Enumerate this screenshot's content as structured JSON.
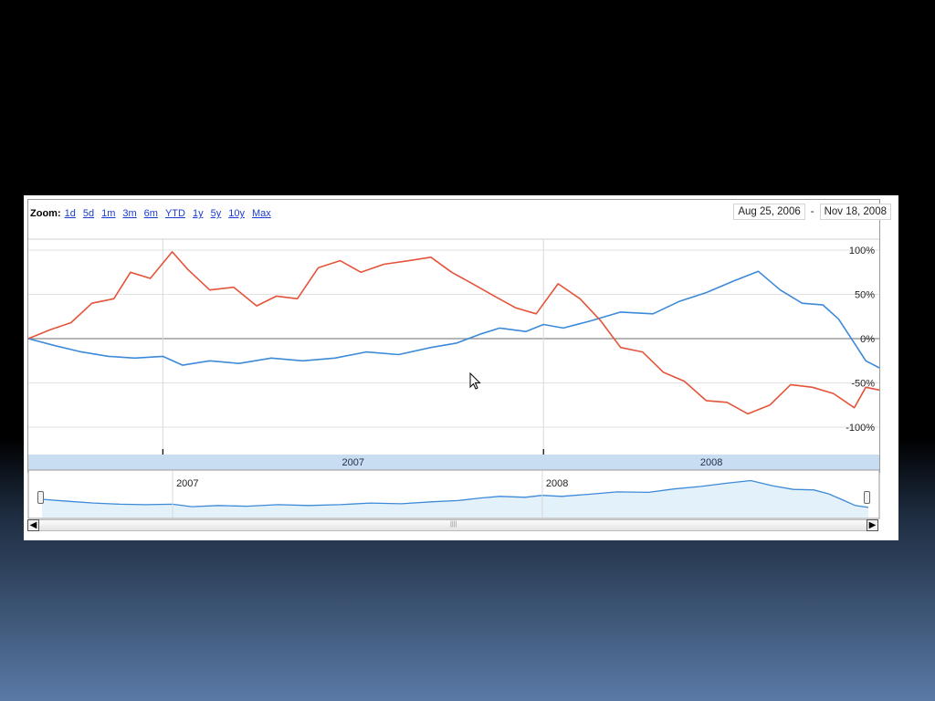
{
  "zoom": {
    "label": "Zoom:",
    "options": [
      "1d",
      "5d",
      "1m",
      "3m",
      "6m",
      "YTD",
      "1y",
      "5y",
      "10y",
      "Max"
    ]
  },
  "date_range": {
    "start": "Aug 25, 2006",
    "separator": "-",
    "end": "Nov 18, 2008"
  },
  "navigator": {
    "labels": [
      "2007",
      "2008"
    ]
  },
  "colors": {
    "series_blue": "#3d8ad8",
    "series_red": "#e4543a",
    "band": "#c8dcf2",
    "mini_fill": "#e3f1fb"
  },
  "icons": {
    "scroll_left": "chevron-left-icon",
    "scroll_right": "chevron-right-icon",
    "cursor": "mouse-pointer-icon"
  },
  "chart_data": {
    "type": "line",
    "title": "",
    "x_range": [
      "2006-08-25",
      "2008-11-18"
    ],
    "ylim": [
      -100,
      100
    ],
    "y_ticks": [
      100,
      50,
      0,
      -50,
      -100
    ],
    "y_tick_labels": [
      "100%",
      "50%",
      "0%",
      "-50%",
      "-100%"
    ],
    "x_tick_labels": [
      "2007",
      "2008"
    ],
    "grid": true,
    "series": [
      {
        "color": "#3d8ad8",
        "x": [
          "2006-08-25",
          "2006-09-20",
          "2006-10-15",
          "2006-11-10",
          "2006-12-05",
          "2007-01-01",
          "2007-01-20",
          "2007-02-15",
          "2007-03-15",
          "2007-04-15",
          "2007-05-15",
          "2007-06-15",
          "2007-07-15",
          "2007-08-15",
          "2007-09-15",
          "2007-10-10",
          "2007-11-01",
          "2007-11-20",
          "2007-12-15",
          "2008-01-01",
          "2008-01-20",
          "2008-02-15",
          "2008-03-15",
          "2008-04-15",
          "2008-05-10",
          "2008-06-05",
          "2008-07-01",
          "2008-07-25",
          "2008-08-15",
          "2008-09-05",
          "2008-09-25",
          "2008-10-10",
          "2008-10-25",
          "2008-11-05",
          "2008-11-18"
        ],
        "values": [
          0,
          -8,
          -15,
          -20,
          -22,
          -20,
          -30,
          -25,
          -28,
          -22,
          -25,
          -22,
          -15,
          -18,
          -10,
          -5,
          5,
          12,
          8,
          16,
          12,
          20,
          30,
          28,
          42,
          52,
          65,
          76,
          55,
          40,
          38,
          22,
          -5,
          -25,
          -33
        ]
      },
      {
        "color": "#e4543a",
        "x": [
          "2006-08-25",
          "2006-09-15",
          "2006-10-05",
          "2006-10-25",
          "2006-11-15",
          "2006-12-01",
          "2006-12-20",
          "2007-01-10",
          "2007-01-25",
          "2007-02-15",
          "2007-03-10",
          "2007-04-01",
          "2007-04-20",
          "2007-05-10",
          "2007-05-30",
          "2007-06-20",
          "2007-07-10",
          "2007-08-01",
          "2007-08-25",
          "2007-09-15",
          "2007-10-05",
          "2007-10-25",
          "2007-11-15",
          "2007-12-05",
          "2007-12-25",
          "2008-01-15",
          "2008-02-05",
          "2008-02-25",
          "2008-03-15",
          "2008-04-05",
          "2008-04-25",
          "2008-05-15",
          "2008-06-05",
          "2008-06-25",
          "2008-07-15",
          "2008-08-05",
          "2008-08-25",
          "2008-09-15",
          "2008-10-05",
          "2008-10-25",
          "2008-11-05",
          "2008-11-18"
        ],
        "values": [
          0,
          10,
          18,
          40,
          45,
          75,
          68,
          98,
          78,
          55,
          58,
          37,
          48,
          45,
          80,
          88,
          75,
          84,
          88,
          92,
          75,
          62,
          48,
          35,
          28,
          62,
          45,
          20,
          -10,
          -15,
          -38,
          -48,
          -70,
          -72,
          -85,
          -75,
          -52,
          -55,
          -62,
          -78,
          -55,
          -58
        ]
      }
    ]
  }
}
